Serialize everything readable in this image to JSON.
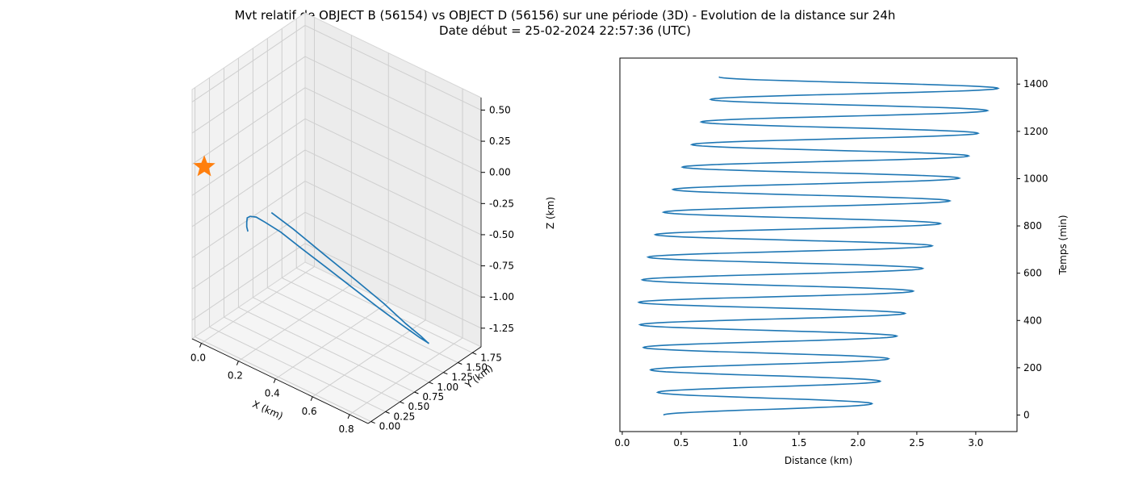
{
  "title_line1": "Mvt relatif de OBJECT B (56154) vs OBJECT D (56156) sur une période (3D) - Evolution de la distance sur 24h",
  "title_line2": "Date début = 25-02-2024 22:57:36 (UTC)",
  "chart_data": [
    {
      "type": "line3d",
      "series_color": "#1f77b4",
      "marker": {
        "symbol": "star",
        "color": "#ff7f0e",
        "x": 0.0,
        "y": 0.0,
        "z": 0.0
      },
      "xlabel": "X (km)",
      "ylabel": "Y (km)",
      "zlabel": "Z (km)",
      "xlim": [
        -0.05,
        0.9
      ],
      "ylim": [
        -0.05,
        1.9
      ],
      "zlim": [
        -1.4,
        0.6
      ],
      "xticks": [
        "0.0",
        "0.2",
        "0.4",
        "0.6",
        "0.8"
      ],
      "yticks": [
        "0.00",
        "0.25",
        "0.50",
        "0.75",
        "1.00",
        "1.25",
        "1.50",
        "1.75"
      ],
      "zticks": [
        "0.50",
        "0.25",
        "0.00",
        "-0.25",
        "-0.50",
        "-0.75",
        "-1.00",
        "-1.25"
      ],
      "grid": true,
      "points": [
        [
          0.23,
          0.02,
          -0.36
        ],
        [
          0.21,
          0.08,
          -0.39
        ],
        [
          0.17,
          0.19,
          -0.42
        ],
        [
          0.12,
          0.35,
          -0.47
        ],
        [
          0.06,
          0.55,
          -0.54
        ],
        [
          0.01,
          0.76,
          -0.63
        ],
        [
          -0.02,
          0.96,
          -0.72
        ],
        [
          -0.03,
          1.15,
          -0.83
        ],
        [
          0.0,
          1.32,
          -0.94
        ],
        [
          0.07,
          1.45,
          -1.06
        ],
        [
          0.17,
          1.55,
          -1.17
        ],
        [
          0.3,
          1.6,
          -1.26
        ],
        [
          0.44,
          1.6,
          -1.32
        ],
        [
          0.58,
          1.55,
          -1.34
        ],
        [
          0.71,
          1.45,
          -1.32
        ],
        [
          0.8,
          1.32,
          -1.26
        ],
        [
          0.85,
          1.15,
          -1.17
        ],
        [
          0.87,
          0.96,
          -1.04
        ],
        [
          0.85,
          0.76,
          -0.89
        ],
        [
          0.79,
          0.57,
          -0.71
        ],
        [
          0.7,
          0.38,
          -0.53
        ],
        [
          0.58,
          0.22,
          -0.36
        ],
        [
          0.45,
          0.1,
          -0.21
        ],
        [
          0.35,
          0.04,
          -0.13
        ]
      ]
    },
    {
      "type": "line",
      "series_color": "#1f77b4",
      "xlabel": "Distance (km)",
      "ylabel": "Temps (min)",
      "xlim": [
        -0.02,
        3.35
      ],
      "ylim": [
        -70,
        1510
      ],
      "xticks": [
        0.0,
        0.5,
        1.0,
        1.5,
        2.0,
        2.5,
        3.0
      ],
      "yticks": [
        0,
        200,
        400,
        600,
        800,
        1000,
        1200,
        1400
      ],
      "yaxis_position": "right",
      "grid": false,
      "period_min": 95.4,
      "t_start": 0,
      "t_end": 1440,
      "turning_points": [
        {
          "t": 0,
          "d": 0.35
        },
        {
          "t": 48,
          "d": 2.12
        },
        {
          "t": 96,
          "d": 0.3
        },
        {
          "t": 143,
          "d": 2.19
        },
        {
          "t": 191,
          "d": 0.24
        },
        {
          "t": 238,
          "d": 2.26
        },
        {
          "t": 286,
          "d": 0.18
        },
        {
          "t": 334,
          "d": 2.33
        },
        {
          "t": 382,
          "d": 0.15
        },
        {
          "t": 430,
          "d": 2.4
        },
        {
          "t": 477,
          "d": 0.14
        },
        {
          "t": 524,
          "d": 2.47
        },
        {
          "t": 572,
          "d": 0.17
        },
        {
          "t": 620,
          "d": 2.55
        },
        {
          "t": 668,
          "d": 0.22
        },
        {
          "t": 716,
          "d": 2.63
        },
        {
          "t": 763,
          "d": 0.28
        },
        {
          "t": 810,
          "d": 2.7
        },
        {
          "t": 858,
          "d": 0.35
        },
        {
          "t": 906,
          "d": 2.78
        },
        {
          "t": 954,
          "d": 0.43
        },
        {
          "t": 1002,
          "d": 2.86
        },
        {
          "t": 1049,
          "d": 0.51
        },
        {
          "t": 1096,
          "d": 2.94
        },
        {
          "t": 1144,
          "d": 0.59
        },
        {
          "t": 1192,
          "d": 3.02
        },
        {
          "t": 1240,
          "d": 0.67
        },
        {
          "t": 1288,
          "d": 3.1
        },
        {
          "t": 1335,
          "d": 0.75
        },
        {
          "t": 1382,
          "d": 3.19
        },
        {
          "t": 1430,
          "d": 0.82
        }
      ]
    }
  ]
}
